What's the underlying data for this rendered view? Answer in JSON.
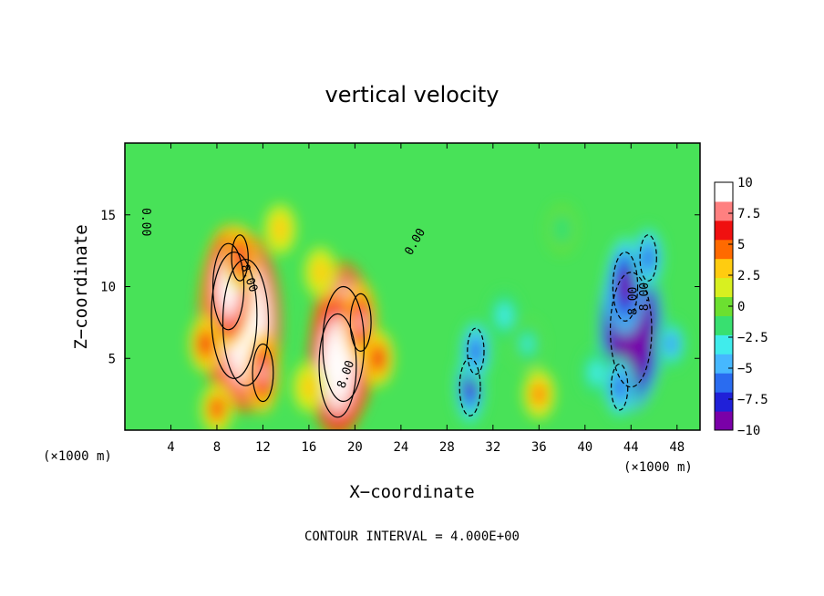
{
  "chart_data": {
    "type": "heatmap",
    "title": "vertical velocity",
    "xlabel": "X−coordinate",
    "ylabel": "Z−coordinate",
    "x_unit_left": "(×1000 m)",
    "x_unit_right": "(×1000 m)",
    "xlim": [
      0,
      50
    ],
    "ylim": [
      0,
      20
    ],
    "x_ticks": [
      4,
      8,
      12,
      16,
      20,
      24,
      28,
      32,
      36,
      40,
      44,
      48
    ],
    "x_tick_labels": [
      "4",
      "8",
      "12",
      "16",
      "20",
      "24",
      "28",
      "32",
      "36",
      "40",
      "44",
      "48"
    ],
    "y_ticks": [
      5,
      10,
      15
    ],
    "y_tick_labels": [
      "5",
      "10",
      "15"
    ],
    "colorbar": {
      "min": -10,
      "max": 10,
      "ticks": [
        10,
        7.5,
        5,
        2.5,
        0,
        -2.5,
        -5,
        -7.5,
        -10
      ],
      "tick_labels": [
        "10",
        "7.5",
        "5",
        "2.5",
        "0",
        "−2.5",
        "−5",
        "−7.5",
        "−10"
      ],
      "colors": [
        "#7a00a8",
        "#2020d8",
        "#2a6cf0",
        "#46b8ff",
        "#40ecec",
        "#38e070",
        "#6ce030",
        "#d8f020",
        "#ffcc10",
        "#ff6a00",
        "#f01010",
        "#ff8080",
        "#ffffff"
      ]
    },
    "contour_labels": [
      "0.00",
      "0.00",
      "8.00",
      "8.00",
      "8.00",
      "8.00"
    ],
    "contour_interval_text": "CONTOUR INTERVAL = 4.000E+00",
    "cells": [
      {
        "x": 9.5,
        "z": 8.0,
        "w": 22
      },
      {
        "x": 10.5,
        "z": 7.5,
        "w": 22
      },
      {
        "x": 9.0,
        "z": 10.0,
        "w": 15
      },
      {
        "x": 10.0,
        "z": 12.0,
        "w": 8
      },
      {
        "x": 12.0,
        "z": 4.0,
        "w": 10
      },
      {
        "x": 7.0,
        "z": 6.0,
        "w": 7
      },
      {
        "x": 8.0,
        "z": 1.5,
        "w": 6
      },
      {
        "x": 19.0,
        "z": 6.0,
        "w": 20
      },
      {
        "x": 18.5,
        "z": 4.5,
        "w": 18
      },
      {
        "x": 20.5,
        "z": 7.5,
        "w": 10
      },
      {
        "x": 22.0,
        "z": 5.0,
        "w": 7
      },
      {
        "x": 17.0,
        "z": 11.0,
        "w": 4
      },
      {
        "x": 16.0,
        "z": 3.0,
        "w": 4
      },
      {
        "x": 13.5,
        "z": 14.0,
        "w": 4
      },
      {
        "x": 30.0,
        "z": 3.0,
        "w": -10
      },
      {
        "x": 30.5,
        "z": 5.5,
        "w": -8
      },
      {
        "x": 33.0,
        "z": 8.0,
        "w": -4
      },
      {
        "x": 35.0,
        "z": 6.0,
        "w": -3
      },
      {
        "x": 36.0,
        "z": 2.5,
        "w": 5
      },
      {
        "x": 44.0,
        "z": 7.0,
        "w": -20
      },
      {
        "x": 43.5,
        "z": 10.0,
        "w": -12
      },
      {
        "x": 45.5,
        "z": 12.0,
        "w": -8
      },
      {
        "x": 47.5,
        "z": 6.0,
        "w": -6
      },
      {
        "x": 41.0,
        "z": 4.0,
        "w": -4
      },
      {
        "x": 43.0,
        "z": 3.0,
        "w": -8
      },
      {
        "x": 38.0,
        "z": 14.0,
        "w": -2
      }
    ]
  }
}
